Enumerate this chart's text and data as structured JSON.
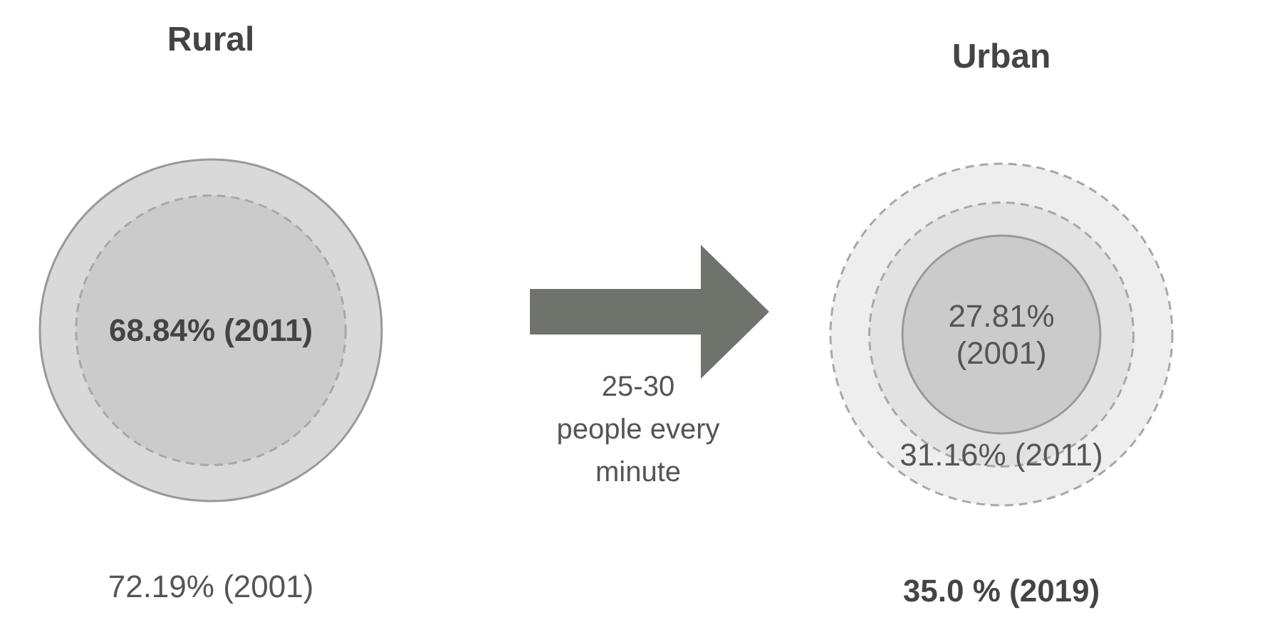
{
  "chart_data": {
    "type": "other",
    "categories": [
      "Rural",
      "Urban"
    ],
    "series": [
      {
        "values": [
          72.19,
          27.81
        ],
        "colors": [
          "#d9d9d9",
          "#cbcbcb"
        ],
        "line_style": "solid",
        "value_labels": [
          "72.19% (2001)",
          "27.81%\n(2001)"
        ]
      },
      {
        "values": [
          68.84,
          31.16
        ],
        "colors": [
          "#cbcbcb",
          "#e2e2e2"
        ],
        "line_style": "dashed",
        "value_labels": [
          "68.84% (2011)",
          "31.16% (2011)"
        ]
      },
      {
        "values": [
          null,
          35.0
        ],
        "colors": [
          null,
          "#eeeeee"
        ],
        "line_style": "dashed",
        "value_labels": [
          null,
          "35.0 % (2019)"
        ]
      }
    ],
    "annotations": [
      "25-30\npeople every\nminute"
    ]
  }
}
